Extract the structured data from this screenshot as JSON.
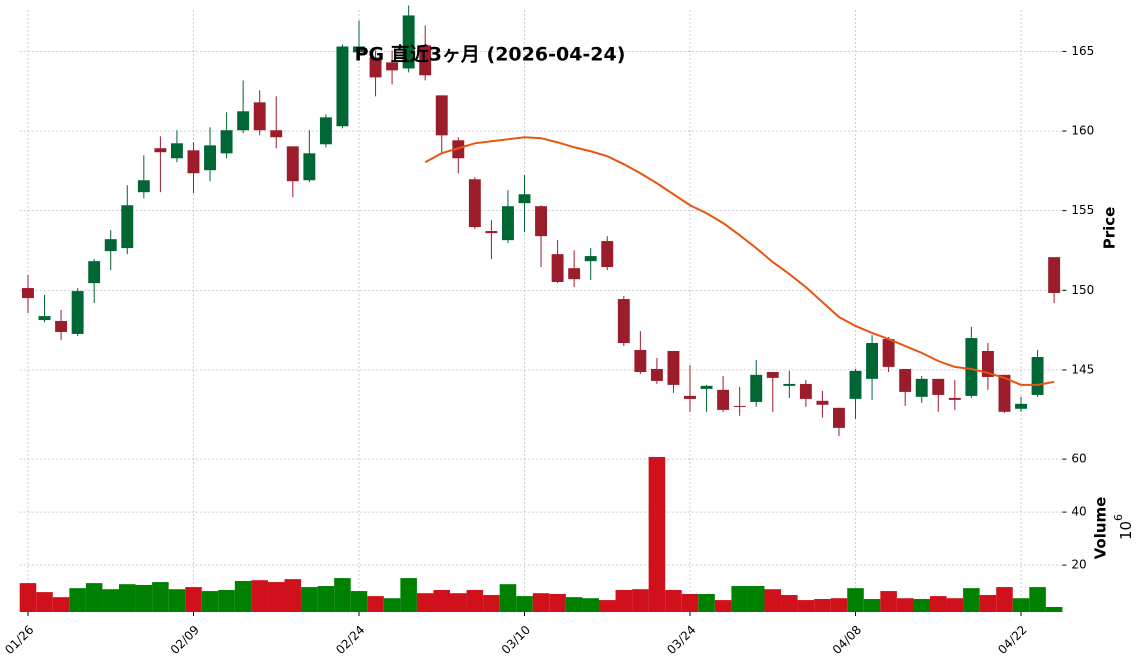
{
  "chart_data": {
    "type": "candlestick",
    "title": "PG 直近3ヶ月 (2026-04-24)",
    "y_label": "Price",
    "grid": true,
    "up_color": "#006633",
    "down_color": "#9b1c2a",
    "categories": [
      "01/26",
      null,
      null,
      null,
      null,
      null,
      null,
      null,
      null,
      null,
      "02/09",
      null,
      null,
      null,
      null,
      null,
      null,
      null,
      null,
      null,
      "02/24",
      null,
      null,
      null,
      null,
      null,
      null,
      null,
      null,
      null,
      "03/10",
      null,
      null,
      null,
      null,
      null,
      null,
      null,
      null,
      null,
      "03/24",
      null,
      null,
      null,
      null,
      null,
      null,
      null,
      null,
      null,
      "04/08",
      null,
      null,
      null,
      null,
      null,
      null,
      null,
      null,
      null,
      "04/22",
      null,
      null
    ],
    "ylim": [
      140.6,
      167.6
    ],
    "yticks": [
      145,
      150,
      155,
      160,
      165
    ],
    "open": [
      150.14,
      148.13,
      148.07,
      147.26,
      150.45,
      152.46,
      152.65,
      156.16,
      158.92,
      158.29,
      158.79,
      157.54,
      158.6,
      160.05,
      161.8,
      160.05,
      159.04,
      156.91,
      159.17,
      160.3,
      164.94,
      164.62,
      164.31,
      163.93,
      165.38,
      162.24,
      159.42,
      156.97,
      153.72,
      153.15,
      155.47,
      155.28,
      152.27,
      151.39,
      151.83,
      153.09,
      149.45,
      146.25,
      145.06,
      146.19,
      143.37,
      143.81,
      143.75,
      142.74,
      142.99,
      144.87,
      144.0,
      144.12,
      143.06,
      142.62,
      143.18,
      144.44,
      146.94,
      145.06,
      143.31,
      144.44,
      143.24,
      143.37,
      146.19,
      144.69,
      142.56,
      143.43,
      152.08
    ],
    "high": [
      150.96,
      149.7,
      148.76,
      150.14,
      151.96,
      153.78,
      156.6,
      158.48,
      159.67,
      160.05,
      159.29,
      160.24,
      161.18,
      163.18,
      162.55,
      162.18,
      159.04,
      160.05,
      161.05,
      165.44,
      166.94,
      165.06,
      165.06,
      167.88,
      166.63,
      162.24,
      159.61,
      157.1,
      154.4,
      156.29,
      157.23,
      155.34,
      153.15,
      152.52,
      152.65,
      153.4,
      149.64,
      147.44,
      145.75,
      146.19,
      145.31,
      144.06,
      144.62,
      143.93,
      145.63,
      144.87,
      144.94,
      144.37,
      143.68,
      142.62,
      145.06,
      147.19,
      147.07,
      145.06,
      144.62,
      144.44,
      144.37,
      147.7,
      146.69,
      144.69,
      143.31,
      146.25,
      152.08
    ],
    "low": [
      148.57,
      148.0,
      146.88,
      147.13,
      149.2,
      151.27,
      152.27,
      155.78,
      156.16,
      158.04,
      156.1,
      156.85,
      158.29,
      159.86,
      159.73,
      158.92,
      155.85,
      156.79,
      158.98,
      160.17,
      164.81,
      162.18,
      162.93,
      163.68,
      163.18,
      158.67,
      157.35,
      153.84,
      151.96,
      152.96,
      153.65,
      151.46,
      150.45,
      150.2,
      150.64,
      151.27,
      146.5,
      144.75,
      144.12,
      143.56,
      142.37,
      142.37,
      142.37,
      142.12,
      142.68,
      142.37,
      143.24,
      142.68,
      141.99,
      140.86,
      141.93,
      143.12,
      144.87,
      142.74,
      142.93,
      142.37,
      142.49,
      143.24,
      143.75,
      142.3,
      142.37,
      143.31,
      149.2
    ],
    "close": [
      149.51,
      148.38,
      147.38,
      149.95,
      151.83,
      153.21,
      155.34,
      156.91,
      158.67,
      159.23,
      157.35,
      159.1,
      160.05,
      161.24,
      160.05,
      159.61,
      156.85,
      158.6,
      160.86,
      165.31,
      165.31,
      163.37,
      163.81,
      167.26,
      163.5,
      159.73,
      158.29,
      153.97,
      153.59,
      155.28,
      156.03,
      153.4,
      150.52,
      150.7,
      152.15,
      151.46,
      146.69,
      144.87,
      144.31,
      144.06,
      143.18,
      144.0,
      142.49,
      142.68,
      144.69,
      144.5,
      144.12,
      143.18,
      142.81,
      141.36,
      144.94,
      146.69,
      145.19,
      143.62,
      144.44,
      143.43,
      143.12,
      147.0,
      144.56,
      142.37,
      142.87,
      145.81,
      149.83
    ],
    "ma": {
      "color": "#e8550f",
      "values": [
        null,
        null,
        null,
        null,
        null,
        null,
        null,
        null,
        null,
        null,
        null,
        null,
        null,
        null,
        null,
        null,
        null,
        null,
        null,
        null,
        null,
        null,
        null,
        null,
        158.04,
        158.61,
        158.92,
        159.23,
        159.36,
        159.48,
        159.61,
        159.55,
        159.29,
        158.98,
        158.73,
        158.42,
        157.92,
        157.35,
        156.72,
        156.03,
        155.34,
        154.84,
        154.22,
        153.46,
        152.65,
        151.77,
        151.02,
        150.2,
        149.26,
        148.32,
        147.76,
        147.32,
        146.94,
        146.5,
        146.07,
        145.56,
        145.19,
        145.06,
        144.81,
        144.5,
        144.06,
        144.06,
        144.25
      ]
    },
    "volume": {
      "label": "Volume",
      "offset_base": "10",
      "offset_exponent": "6",
      "ylim": [
        2.3,
        65.7
      ],
      "yticks": [
        20,
        40,
        60
      ],
      "values": [
        13.2,
        9.8,
        7.9,
        11.3,
        13.2,
        10.9,
        12.8,
        12.5,
        13.6,
        10.9,
        11.7,
        10.2,
        10.6,
        14.0,
        14.3,
        13.6,
        14.7,
        11.7,
        12.1,
        15.1,
        10.2,
        8.3,
        7.5,
        15.1,
        9.4,
        10.6,
        9.4,
        10.6,
        8.7,
        12.8,
        8.3,
        9.4,
        9.1,
        7.9,
        7.5,
        6.8,
        10.6,
        10.9,
        60.8,
        10.6,
        9.1,
        9.1,
        6.8,
        12.1,
        12.1,
        10.9,
        8.7,
        6.8,
        7.2,
        7.5,
        11.3,
        7.2,
        10.2,
        7.5,
        7.2,
        8.3,
        7.5,
        11.3,
        8.7,
        11.7,
        7.5,
        11.7,
        4.2
      ],
      "colors": [
        "#d0101a",
        "#d0101a",
        "#d0101a",
        "#008000",
        "#008000",
        "#008000",
        "#008000",
        "#008000",
        "#008000",
        "#008000",
        "#d0101a",
        "#008000",
        "#008000",
        "#008000",
        "#d0101a",
        "#d0101a",
        "#d0101a",
        "#008000",
        "#008000",
        "#008000",
        "#008000",
        "#d0101a",
        "#008000",
        "#008000",
        "#d0101a",
        "#d0101a",
        "#d0101a",
        "#d0101a",
        "#d0101a",
        "#008000",
        "#008000",
        "#d0101a",
        "#d0101a",
        "#008000",
        "#008000",
        "#d0101a",
        "#d0101a",
        "#d0101a",
        "#d0101a",
        "#d0101a",
        "#d0101a",
        "#008000",
        "#d0101a",
        "#008000",
        "#008000",
        "#d0101a",
        "#d0101a",
        "#d0101a",
        "#d0101a",
        "#d0101a",
        "#008000",
        "#008000",
        "#d0101a",
        "#d0101a",
        "#008000",
        "#d0101a",
        "#d0101a",
        "#008000",
        "#d0101a",
        "#d0101a",
        "#008000",
        "#008000",
        "#008000"
      ]
    }
  }
}
